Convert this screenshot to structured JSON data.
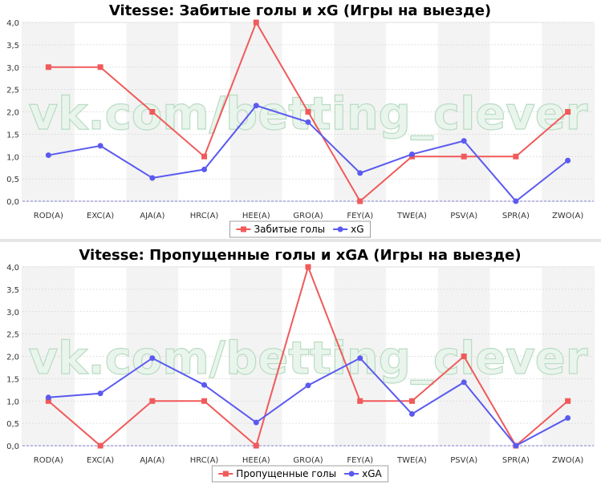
{
  "colors": {
    "series_red": "#f05a5a",
    "series_blue": "#5a5af0",
    "band": "#f3f3f3",
    "grid": "#d8d8d8",
    "zero_line": "#5a5ad0"
  },
  "watermark": "vk.com/betting_clever",
  "chart_data": [
    {
      "type": "line",
      "title": "Vitesse: Забитые голы и xG (Игры на выезде)",
      "categories": [
        "ROD(A)",
        "EXC(A)",
        "AJA(A)",
        "HRC(A)",
        "HEE(A)",
        "GRO(A)",
        "FEY(A)",
        "TWE(A)",
        "PSV(A)",
        "SPR(A)",
        "ZWO(A)"
      ],
      "ylim": [
        0,
        4
      ],
      "yticks": [
        "0,0",
        "0,5",
        "1,0",
        "1,5",
        "2,0",
        "2,5",
        "3,0",
        "3,5",
        "4,0"
      ],
      "grid": true,
      "legend_position": "bottom-center",
      "series": [
        {
          "name": "Забитые голы",
          "marker": "square",
          "color": "#f05a5a",
          "values": [
            3,
            3,
            2,
            1,
            4,
            2,
            0,
            1,
            1,
            1,
            2
          ]
        },
        {
          "name": "xG",
          "marker": "circle",
          "color": "#5a5af0",
          "values": [
            1.03,
            1.24,
            0.52,
            0.71,
            2.14,
            1.77,
            0.63,
            1.05,
            1.35,
            0.0,
            0.91
          ]
        }
      ]
    },
    {
      "type": "line",
      "title": "Vitesse: Пропущенные голы и xGA (Игры на выезде)",
      "categories": [
        "ROD(A)",
        "EXC(A)",
        "AJA(A)",
        "HRC(A)",
        "HEE(A)",
        "GRO(A)",
        "FEY(A)",
        "TWE(A)",
        "PSV(A)",
        "SPR(A)",
        "ZWO(A)"
      ],
      "ylim": [
        0,
        4
      ],
      "yticks": [
        "0,0",
        "0,5",
        "1,0",
        "1,5",
        "2,0",
        "2,5",
        "3,0",
        "3,5",
        "4,0"
      ],
      "grid": true,
      "legend_position": "bottom-center",
      "series": [
        {
          "name": "Пропущенные голы",
          "marker": "square",
          "color": "#f05a5a",
          "values": [
            1,
            0,
            1,
            1,
            0,
            4,
            1,
            1,
            2,
            0,
            1
          ]
        },
        {
          "name": "xGA",
          "marker": "circle",
          "color": "#5a5af0",
          "values": [
            1.08,
            1.17,
            1.96,
            1.36,
            0.52,
            1.35,
            1.96,
            0.71,
            1.42,
            0.0,
            0.62
          ]
        }
      ]
    }
  ]
}
